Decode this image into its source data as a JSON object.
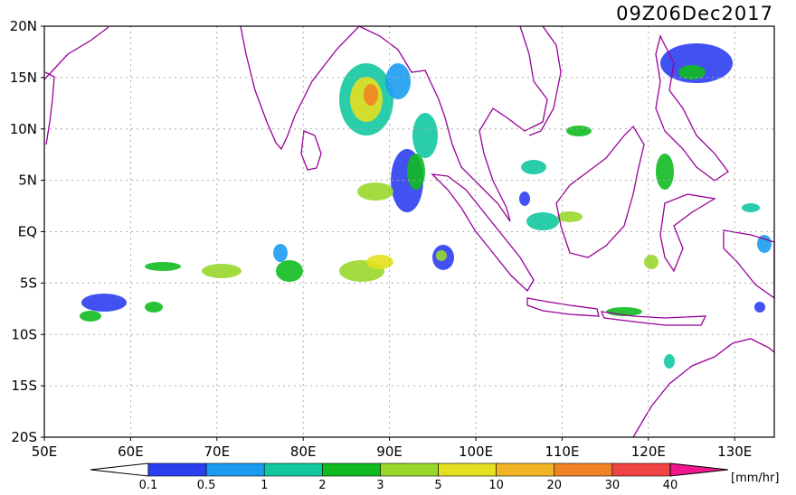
{
  "header": {
    "title": "09Z06Dec2017"
  },
  "map": {
    "lat_labels": [
      "20N",
      "15N",
      "10N",
      "5N",
      "EQ",
      "5S",
      "10S",
      "15S",
      "20S"
    ],
    "lon_labels": [
      "50E",
      "60E",
      "70E",
      "80E",
      "90E",
      "100E",
      "110E",
      "120E",
      "130E"
    ]
  },
  "colorbar": {
    "labels": [
      "0.1",
      "0.5",
      "1",
      "2",
      "3",
      "5",
      "10",
      "20",
      "30",
      "40"
    ],
    "colors": [
      "#2c3ff0",
      "#1c9cf0",
      "#12c8a0",
      "#10bb20",
      "#98d82c",
      "#e4e020",
      "#f0b424",
      "#f08424",
      "#f04444",
      "#f0188c"
    ],
    "unit": "[mm/hr]"
  }
}
